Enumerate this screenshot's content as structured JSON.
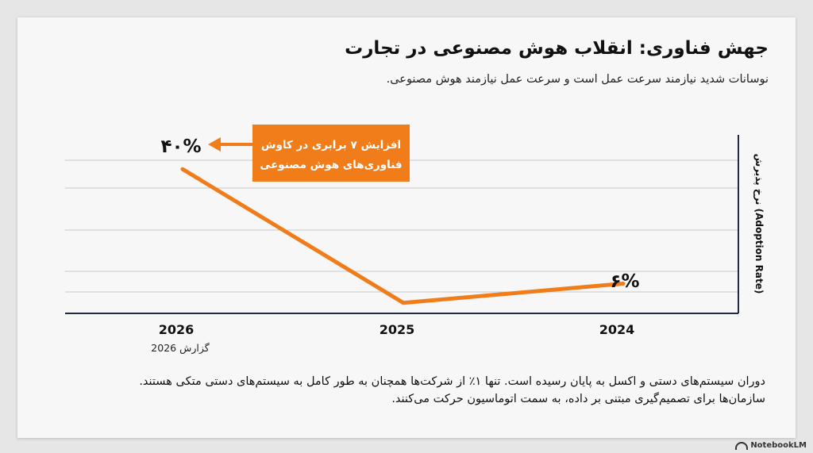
{
  "title": "جهش فناوری: انقلاب هوش مصنوعی در تجارت",
  "subtitle": "نوسانات شدید نیازمند سرعت عمل است و سرعت عمل نیازمند هوش مصنوعی.",
  "footer": "دوران سیستم‌های دستی و اکسل به پایان رسیده است. تنها ۱٪ از شرکت‌ها همچنان به طور کامل به سیستم‌های دستی متکی هستند. سازمان‌ها برای تصمیم‌گیری مبتنی بر داده، به سمت اتوماسیون حرکت می‌کنند.",
  "brand": "NotebookLM",
  "colors": {
    "line": "#f07d1a",
    "callout_bg": "#f07d1a",
    "axis": "#1f2a44",
    "grid": "#c9c9c9"
  },
  "chart_data": {
    "type": "line",
    "categories": [
      "2026",
      "2025",
      "2024"
    ],
    "category_sublabels": [
      "گزارش 2026",
      "",
      ""
    ],
    "values": [
      40,
      0.3,
      6
    ],
    "data_labels": [
      "۴۰%",
      "",
      "۶%"
    ],
    "ylabel": "نرخ پذیرش (Adoption Rate)",
    "ylim": [
      0,
      45
    ],
    "grid": true,
    "annotation": {
      "text_lines": [
        "افزایش ۷ برابری در کاوش",
        "فناوری‌های هوش مصنوعی"
      ],
      "target_index": 0
    }
  }
}
